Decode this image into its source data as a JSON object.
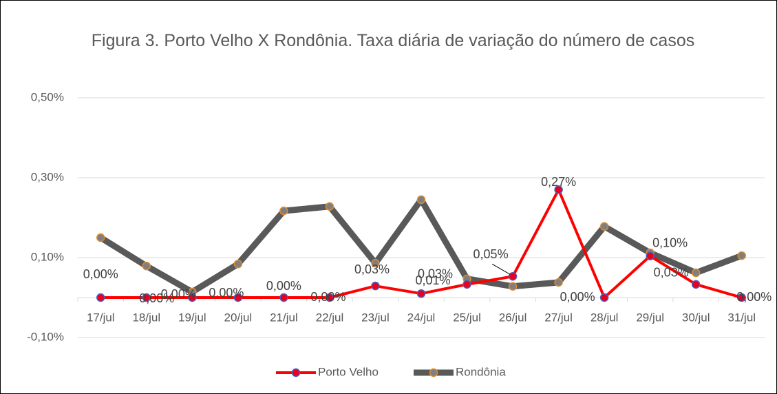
{
  "chart_data": {
    "type": "line",
    "title": "Figura 3. Porto Velho X Rondônia. Taxa diária de variação do número de casos",
    "categories": [
      "17/jul",
      "18/jul",
      "19/jul",
      "20/jul",
      "21/jul",
      "22/jul",
      "23/jul",
      "24/jul",
      "25/jul",
      "26/jul",
      "27/jul",
      "28/jul",
      "29/jul",
      "30/jul",
      "31/jul"
    ],
    "series": [
      {
        "name": "Porto Velho",
        "color": "#ff0000",
        "values": [
          0,
          0,
          0,
          0,
          0,
          0,
          0.029,
          0.01,
          0.033,
          0.053,
          0.27,
          0,
          0.104,
          0.033,
          0
        ],
        "value_labels": [
          "0,00%",
          "0,00%",
          "0,00%",
          "0,00%",
          "0,00%",
          "0,00%",
          "0,03%",
          "0,01%",
          "0,03%",
          "0,05%",
          "0,27%",
          "0,00%",
          "0,10%",
          "0,03%",
          "0,00%"
        ]
      },
      {
        "name": "Rondônia",
        "color": "#595959",
        "values": [
          0.15,
          0.079,
          0.014,
          0.084,
          0.217,
          0.228,
          0.086,
          0.245,
          0.047,
          0.028,
          0.038,
          0.178,
          0.112,
          0.062,
          0.105
        ]
      }
    ],
    "ylim": [
      -0.1,
      0.5
    ],
    "yticks": [
      {
        "value": -0.1,
        "label": "-0,10%"
      },
      {
        "value": 0.1,
        "label": "0,10%"
      },
      {
        "value": 0.3,
        "label": "0,30%"
      },
      {
        "value": 0.5,
        "label": "0,50%"
      }
    ],
    "grid": true,
    "legend": "bottom"
  }
}
